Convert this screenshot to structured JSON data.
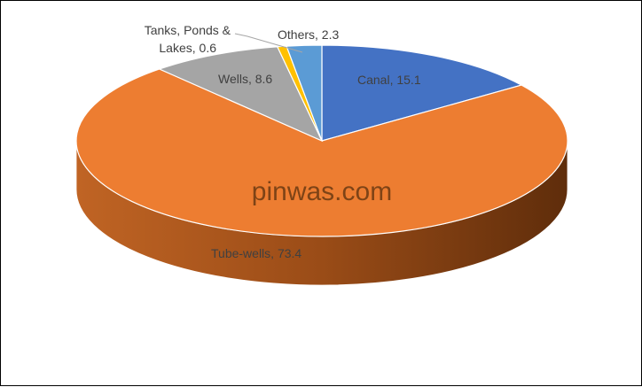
{
  "watermark": "pinwas.com",
  "chart_data": {
    "type": "pie",
    "title": "",
    "categories": [
      "Canal",
      "Tube-wells",
      "Wells",
      "Tanks, Ponds & Lakes",
      "Others"
    ],
    "values": [
      15.1,
      73.4,
      8.6,
      0.6,
      2.3
    ],
    "labels": [
      "Canal, 15.1",
      "Tube-wells, 73.4",
      "Wells, 8.6",
      "Tanks, Ponds &",
      "Lakes, 0.6",
      "Others, 2.3"
    ],
    "colors": [
      "#4472c4",
      "#ed7d31",
      "#a5a5a5",
      "#ffc000",
      "#5b9bd5"
    ],
    "legend": "none",
    "style": "3d"
  }
}
